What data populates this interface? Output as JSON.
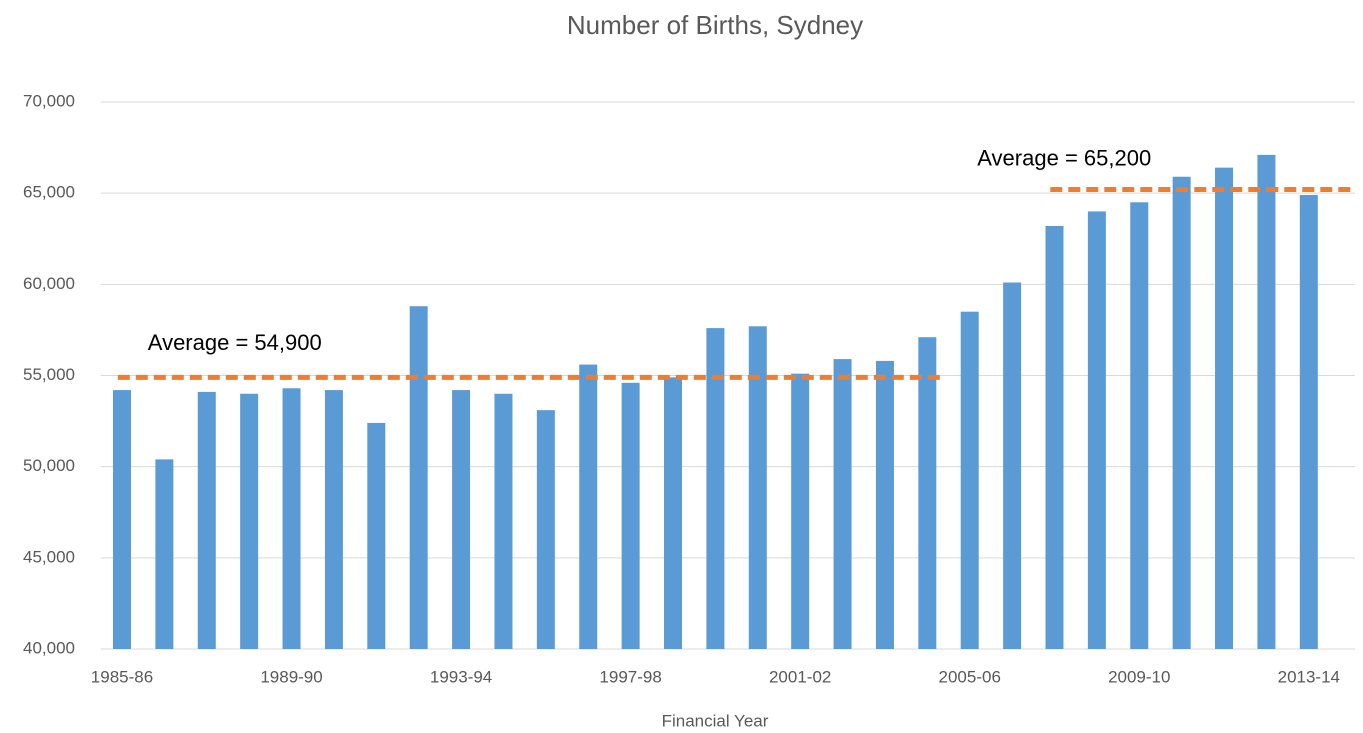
{
  "chart_data": {
    "type": "bar",
    "title": "Number of Births, Sydney",
    "x_label": "Financial Year",
    "categories": [
      "1985-86",
      null,
      null,
      null,
      "1989-90",
      null,
      null,
      null,
      "1993-94",
      null,
      null,
      null,
      "1997-98",
      null,
      null,
      null,
      "2001-02",
      null,
      null,
      null,
      "2005-06",
      null,
      null,
      null,
      "2009-10",
      null,
      null,
      null,
      "2013-14"
    ],
    "values": [
      54200,
      50400,
      54100,
      54000,
      54300,
      54200,
      52400,
      58800,
      54200,
      54000,
      53100,
      55600,
      54600,
      54900,
      57600,
      57700,
      55100,
      55900,
      55800,
      57100,
      58500,
      60100,
      63200,
      64000,
      64500,
      65900,
      66400,
      67100,
      64900
    ],
    "color": "#5b9bd5",
    "averages": [
      {
        "label": "Average = 54,900",
        "color": "#ed7d31",
        "values": [
          54900,
          54900,
          54900,
          54900,
          54900,
          54900,
          54900,
          54900,
          54900,
          54900,
          54900,
          54900,
          54900,
          54900,
          54900,
          54900,
          54900,
          54900,
          54900,
          54900,
          null,
          null,
          null,
          null,
          null,
          null,
          null,
          null,
          null
        ]
      },
      {
        "label": "Average = 65,200",
        "color": "#ed7d31",
        "values": [
          null,
          null,
          null,
          null,
          null,
          null,
          null,
          null,
          null,
          null,
          null,
          null,
          null,
          null,
          null,
          null,
          null,
          null,
          null,
          null,
          null,
          null,
          65200,
          65200,
          65200,
          65200,
          65200,
          65200,
          65200
        ]
      }
    ],
    "ylim": [
      40000,
      70000
    ],
    "yticks": [
      {
        "value": 40000,
        "label": "40,000"
      },
      {
        "value": 45000,
        "label": "45,000"
      },
      {
        "value": 50000,
        "label": "50,000"
      },
      {
        "value": 55000,
        "label": "55,000"
      },
      {
        "value": 60000,
        "label": "60,000"
      },
      {
        "value": 65000,
        "label": "65,000"
      },
      {
        "value": 70000,
        "label": "70,000"
      }
    ],
    "grid": true
  }
}
